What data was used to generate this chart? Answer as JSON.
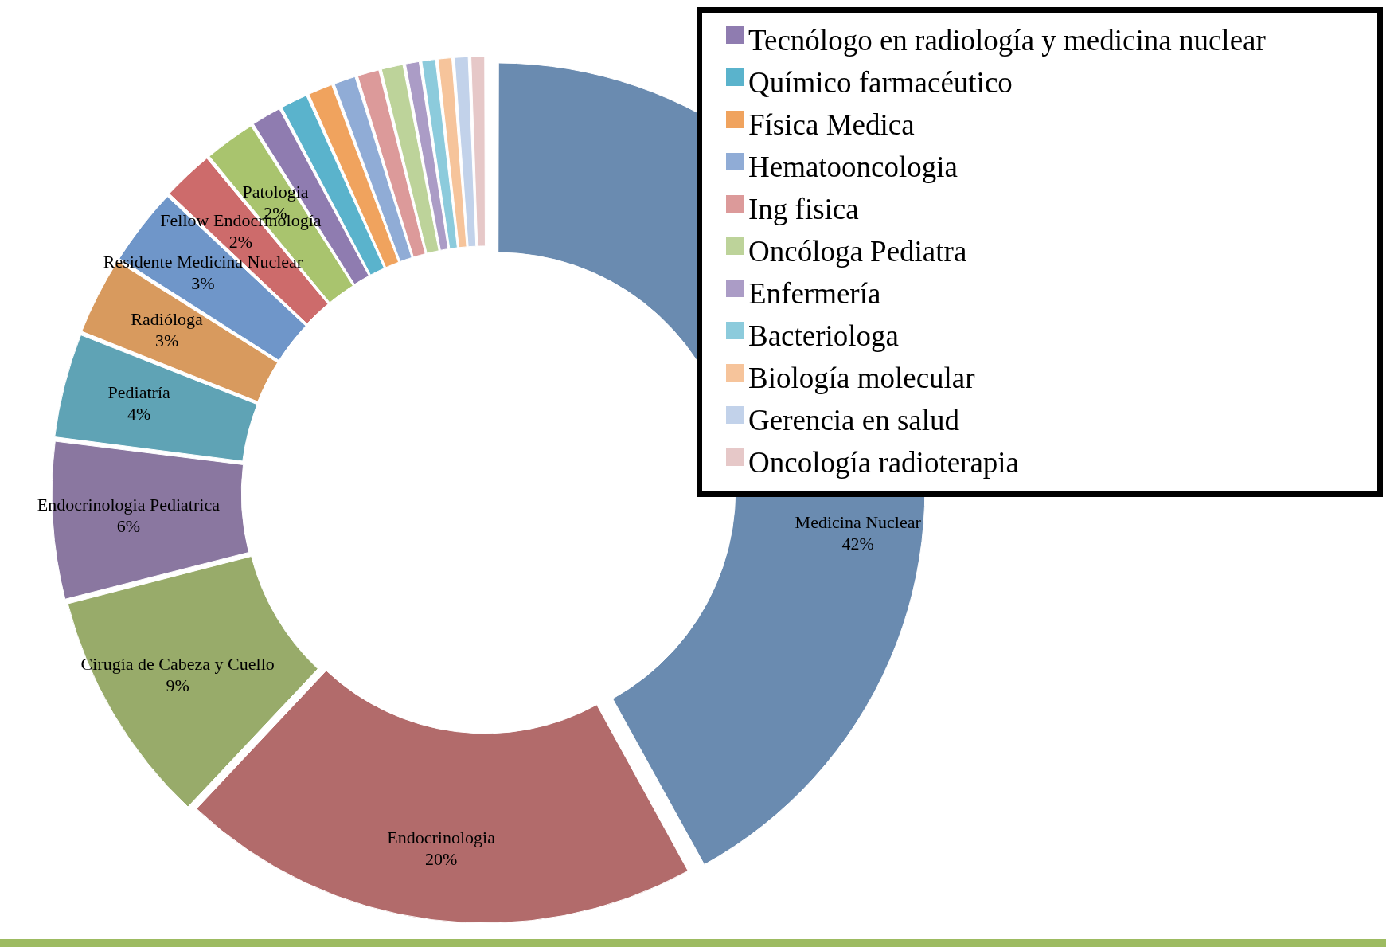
{
  "chart_data": {
    "type": "donut",
    "legend": "top right",
    "categories": [
      "Medicina Nuclear",
      "Endocrinologia",
      "Cirugía de Cabeza y Cuello",
      "Endocrinologia Pediatrica",
      "Pediatría",
      "Radióloga",
      "Residente Medicina Nuclear",
      "Fellow Endocrinología",
      "Patologia",
      "Tecnólogo en radiología y medicina nuclear",
      "Químico farmacéutico",
      "Física Medica",
      "Hematooncologia",
      "Ing fisica",
      "Oncóloga Pediatra",
      "Enfermería",
      "Bacteriologa",
      "Biología molecular",
      "Gerencia en salud",
      "Oncología radioterapia"
    ],
    "values": [
      42,
      20,
      9,
      6,
      4,
      3,
      3,
      2,
      2,
      1.2,
      1.1,
      1.0,
      0.9,
      0.9,
      0.9,
      0.6,
      0.6,
      0.6,
      0.6,
      0.6
    ],
    "value_labels": [
      "42%",
      "20%",
      "9%",
      "6%",
      "4%",
      "3%",
      "3%",
      "2%",
      "2%",
      null,
      null,
      null,
      null,
      null,
      null,
      null,
      null,
      null,
      null,
      null
    ],
    "colors": [
      "#6a8bb0",
      "#b26b6b",
      "#98ab6a",
      "#8a77a0",
      "#5fa3b5",
      "#d89a5e",
      "#6f96c9",
      "#cd6b6b",
      "#a9c46e",
      "#8f7cb0",
      "#5ab3cc",
      "#f0a35e",
      "#90acd6",
      "#dc9a9a",
      "#bdd39a",
      "#ab9cc6",
      "#8ccbdc",
      "#f6c49b",
      "#c2d2ea",
      "#e6c8c8"
    ]
  }
}
